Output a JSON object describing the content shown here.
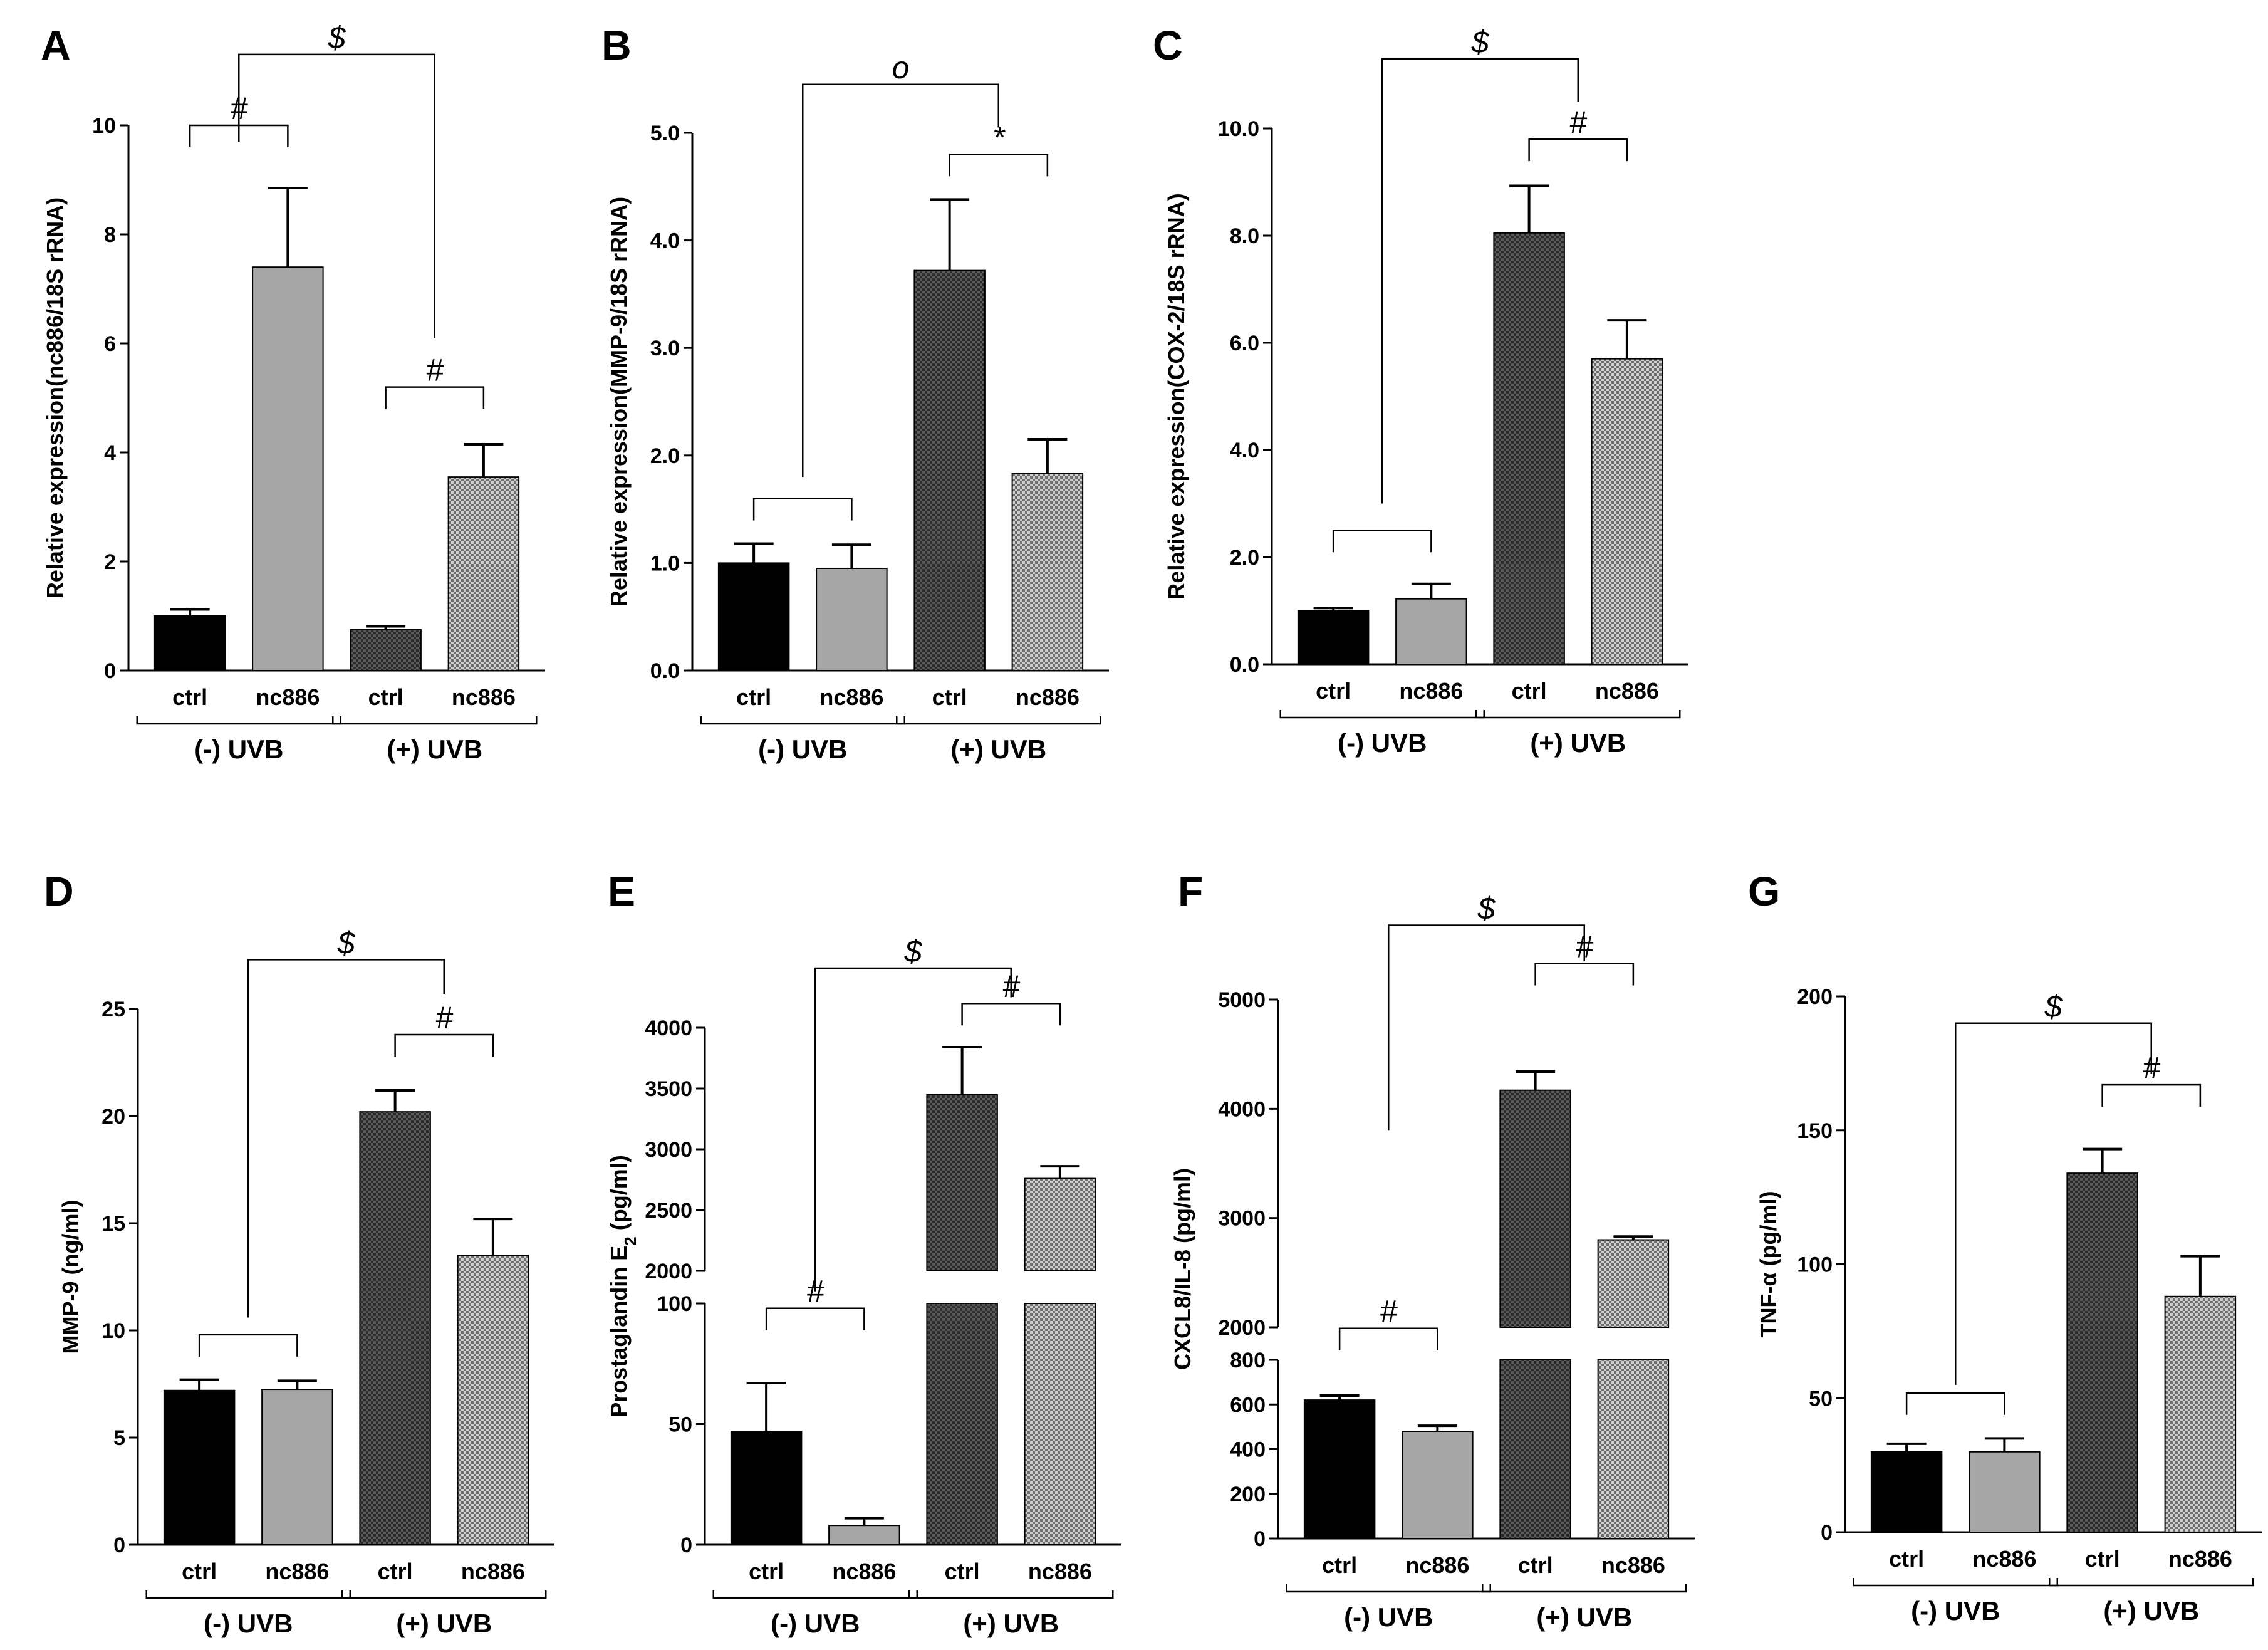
{
  "figure": {
    "patterns": {
      "ctrl_minus": "#000000",
      "nc886_minus": "#a6a6a6",
      "ctrl_plus": "crosshatch-dark",
      "nc886_plus": "crosshatch-light"
    }
  },
  "chart_data": [
    {
      "panel": "A",
      "type": "bar",
      "ylabel": "Relative expression(nc886/18S rRNA)",
      "ylim": [
        0,
        10
      ],
      "yticks": [
        {
          "v": 0,
          "t": "0"
        },
        {
          "v": 2,
          "t": "2"
        },
        {
          "v": 4,
          "t": "4"
        },
        {
          "v": 6,
          "t": "6"
        },
        {
          "v": 8,
          "t": "8"
        },
        {
          "v": 10,
          "t": "10"
        }
      ],
      "categories": [
        "ctrl",
        "nc886",
        "ctrl",
        "nc886"
      ],
      "groups": [
        "(-) UVB",
        "(+) UVB"
      ],
      "values": [
        1.0,
        7.4,
        0.75,
        3.55
      ],
      "errors": [
        0.12,
        1.45,
        0.06,
        0.6
      ],
      "significance": [
        {
          "from": 0,
          "to": 1,
          "symbol": "#",
          "level": 10.0
        },
        {
          "from": 2,
          "to": 3,
          "symbol": "#",
          "level": 5.2
        },
        {
          "from": 0.5,
          "to": 2.5,
          "symbol": "$",
          "level": 11.3,
          "left_end": 9.7,
          "right_end": 6.1
        }
      ]
    },
    {
      "panel": "B",
      "type": "bar",
      "ylabel": "Relative expression(MMP-9/18S rRNA)",
      "ylim": [
        0,
        5
      ],
      "yticks": [
        {
          "v": 0,
          "t": "0.0"
        },
        {
          "v": 1,
          "t": "1.0"
        },
        {
          "v": 2,
          "t": "2.0"
        },
        {
          "v": 3,
          "t": "3.0"
        },
        {
          "v": 4,
          "t": "4.0"
        },
        {
          "v": 5,
          "t": "5.0"
        }
      ],
      "categories": [
        "ctrl",
        "nc886",
        "ctrl",
        "nc886"
      ],
      "groups": [
        "(-) UVB",
        "(+) UVB"
      ],
      "values": [
        1.0,
        0.95,
        3.72,
        1.83
      ],
      "errors": [
        0.18,
        0.22,
        0.66,
        0.32
      ],
      "significance": [
        {
          "from": 0,
          "to": 1,
          "symbol": "",
          "level": 1.6
        },
        {
          "from": 2,
          "to": 3,
          "symbol": "*",
          "level": 4.8
        },
        {
          "from": 0.5,
          "to": 2.5,
          "symbol": "o",
          "level": 5.45,
          "left_end": 1.8,
          "right_end": 5.05
        }
      ]
    },
    {
      "panel": "C",
      "type": "bar",
      "ylabel": "Relative expression(COX-2/18S rRNA)",
      "ylim": [
        0,
        10
      ],
      "yticks": [
        {
          "v": 0,
          "t": "0.0"
        },
        {
          "v": 2,
          "t": "2.0"
        },
        {
          "v": 4,
          "t": "4.0"
        },
        {
          "v": 6,
          "t": "6.0"
        },
        {
          "v": 8,
          "t": "8.0"
        },
        {
          "v": 10,
          "t": "10.0"
        }
      ],
      "categories": [
        "ctrl",
        "nc886",
        "ctrl",
        "nc886"
      ],
      "groups": [
        "(-) UVB",
        "(+) UVB"
      ],
      "values": [
        1.0,
        1.22,
        8.05,
        5.7
      ],
      "errors": [
        0.05,
        0.28,
        0.88,
        0.72
      ],
      "significance": [
        {
          "from": 0,
          "to": 1,
          "symbol": "",
          "level": 2.5
        },
        {
          "from": 2,
          "to": 3,
          "symbol": "#",
          "level": 9.8
        },
        {
          "from": 0.5,
          "to": 2.5,
          "symbol": "$",
          "level": 11.3,
          "left_end": 3.0,
          "right_end": 10.5
        }
      ]
    },
    {
      "panel": "D",
      "type": "bar",
      "ylabel": "MMP-9 (ng/ml)",
      "ylim": [
        0,
        25
      ],
      "yticks": [
        {
          "v": 0,
          "t": "0"
        },
        {
          "v": 5,
          "t": "5"
        },
        {
          "v": 10,
          "t": "10"
        },
        {
          "v": 15,
          "t": "15"
        },
        {
          "v": 20,
          "t": "20"
        },
        {
          "v": 25,
          "t": "25"
        }
      ],
      "categories": [
        "ctrl",
        "nc886",
        "ctrl",
        "nc886"
      ],
      "groups": [
        "(-) UVB",
        "(+) UVB"
      ],
      "values": [
        7.2,
        7.25,
        20.2,
        13.5
      ],
      "errors": [
        0.5,
        0.4,
        1.0,
        1.7
      ],
      "significance": [
        {
          "from": 0,
          "to": 1,
          "symbol": "",
          "level": 9.8
        },
        {
          "from": 2,
          "to": 3,
          "symbol": "#",
          "level": 23.8
        },
        {
          "from": 0.5,
          "to": 2.5,
          "symbol": "$",
          "level": 27.3,
          "left_end": 10.6,
          "right_end": 25.7
        }
      ]
    },
    {
      "panel": "E",
      "type": "bar",
      "ylabel": "Prostaglandin E2 (pg/ml)",
      "broken": true,
      "lower_range": [
        0,
        100
      ],
      "upper_range": [
        2000,
        4000
      ],
      "yticks_lower": [
        {
          "v": 0,
          "t": "0"
        },
        {
          "v": 50,
          "t": "50"
        },
        {
          "v": 100,
          "t": "100"
        }
      ],
      "yticks_upper": [
        {
          "v": 2000,
          "t": "2000"
        },
        {
          "v": 2500,
          "t": "2500"
        },
        {
          "v": 3000,
          "t": "3000"
        },
        {
          "v": 3500,
          "t": "3500"
        },
        {
          "v": 4000,
          "t": "4000"
        }
      ],
      "categories": [
        "ctrl",
        "nc886",
        "ctrl",
        "nc886"
      ],
      "groups": [
        "(-) UVB",
        "(+) UVB"
      ],
      "values": [
        47,
        8,
        3450,
        2760
      ],
      "errors": [
        20,
        3,
        390,
        100
      ],
      "significance": [
        {
          "from": 0,
          "to": 1,
          "symbol": "#",
          "level": "L98"
        },
        {
          "from": 2,
          "to": 3,
          "symbol": "#",
          "level": "U4200"
        },
        {
          "from": 0.5,
          "to": 2.5,
          "symbol": "$",
          "level": "U4490",
          "left_end": "L105",
          "right_end": "U4250"
        }
      ]
    },
    {
      "panel": "F",
      "type": "bar",
      "ylabel": "CXCL8/IL-8 (pg/ml)",
      "broken": true,
      "lower_range": [
        0,
        800
      ],
      "upper_range": [
        2000,
        5000
      ],
      "yticks_lower": [
        {
          "v": 0,
          "t": "0"
        },
        {
          "v": 200,
          "t": "200"
        },
        {
          "v": 400,
          "t": "400"
        },
        {
          "v": 600,
          "t": "600"
        },
        {
          "v": 800,
          "t": "800"
        }
      ],
      "yticks_upper": [
        {
          "v": 2000,
          "t": "2000"
        },
        {
          "v": 3000,
          "t": "3000"
        },
        {
          "v": 4000,
          "t": "4000"
        },
        {
          "v": 5000,
          "t": "5000"
        }
      ],
      "categories": [
        "ctrl",
        "nc886",
        "ctrl",
        "nc886"
      ],
      "groups": [
        "(-) UVB",
        "(+) UVB"
      ],
      "values": [
        620,
        480,
        4170,
        2800
      ],
      "errors": [
        20,
        25,
        170,
        30
      ],
      "significance": [
        {
          "from": 0,
          "to": 1,
          "symbol": "#",
          "level": "U1990"
        },
        {
          "from": 2,
          "to": 3,
          "symbol": "#",
          "level": "U5330"
        },
        {
          "from": 0.5,
          "to": 2.5,
          "symbol": "$",
          "level": "U5680",
          "left_end": "U3800",
          "right_end": "U5350"
        }
      ]
    },
    {
      "panel": "G",
      "type": "bar",
      "ylabel": "TNF-α (pg/ml)",
      "ylim": [
        0,
        200
      ],
      "yticks": [
        {
          "v": 0,
          "t": "0"
        },
        {
          "v": 50,
          "t": "50"
        },
        {
          "v": 100,
          "t": "100"
        },
        {
          "v": 150,
          "t": "150"
        },
        {
          "v": 200,
          "t": "200"
        }
      ],
      "categories": [
        "ctrl",
        "nc886",
        "ctrl",
        "nc886"
      ],
      "groups": [
        "(-) UVB",
        "(+) UVB"
      ],
      "values": [
        30,
        30,
        134,
        88
      ],
      "errors": [
        3,
        5,
        9,
        15
      ],
      "significance": [
        {
          "from": 0,
          "to": 1,
          "symbol": "",
          "level": 52
        },
        {
          "from": 2,
          "to": 3,
          "symbol": "#",
          "level": 167
        },
        {
          "from": 0.5,
          "to": 2.5,
          "symbol": "$",
          "level": 190,
          "left_end": 55,
          "right_end": 171
        }
      ]
    }
  ]
}
